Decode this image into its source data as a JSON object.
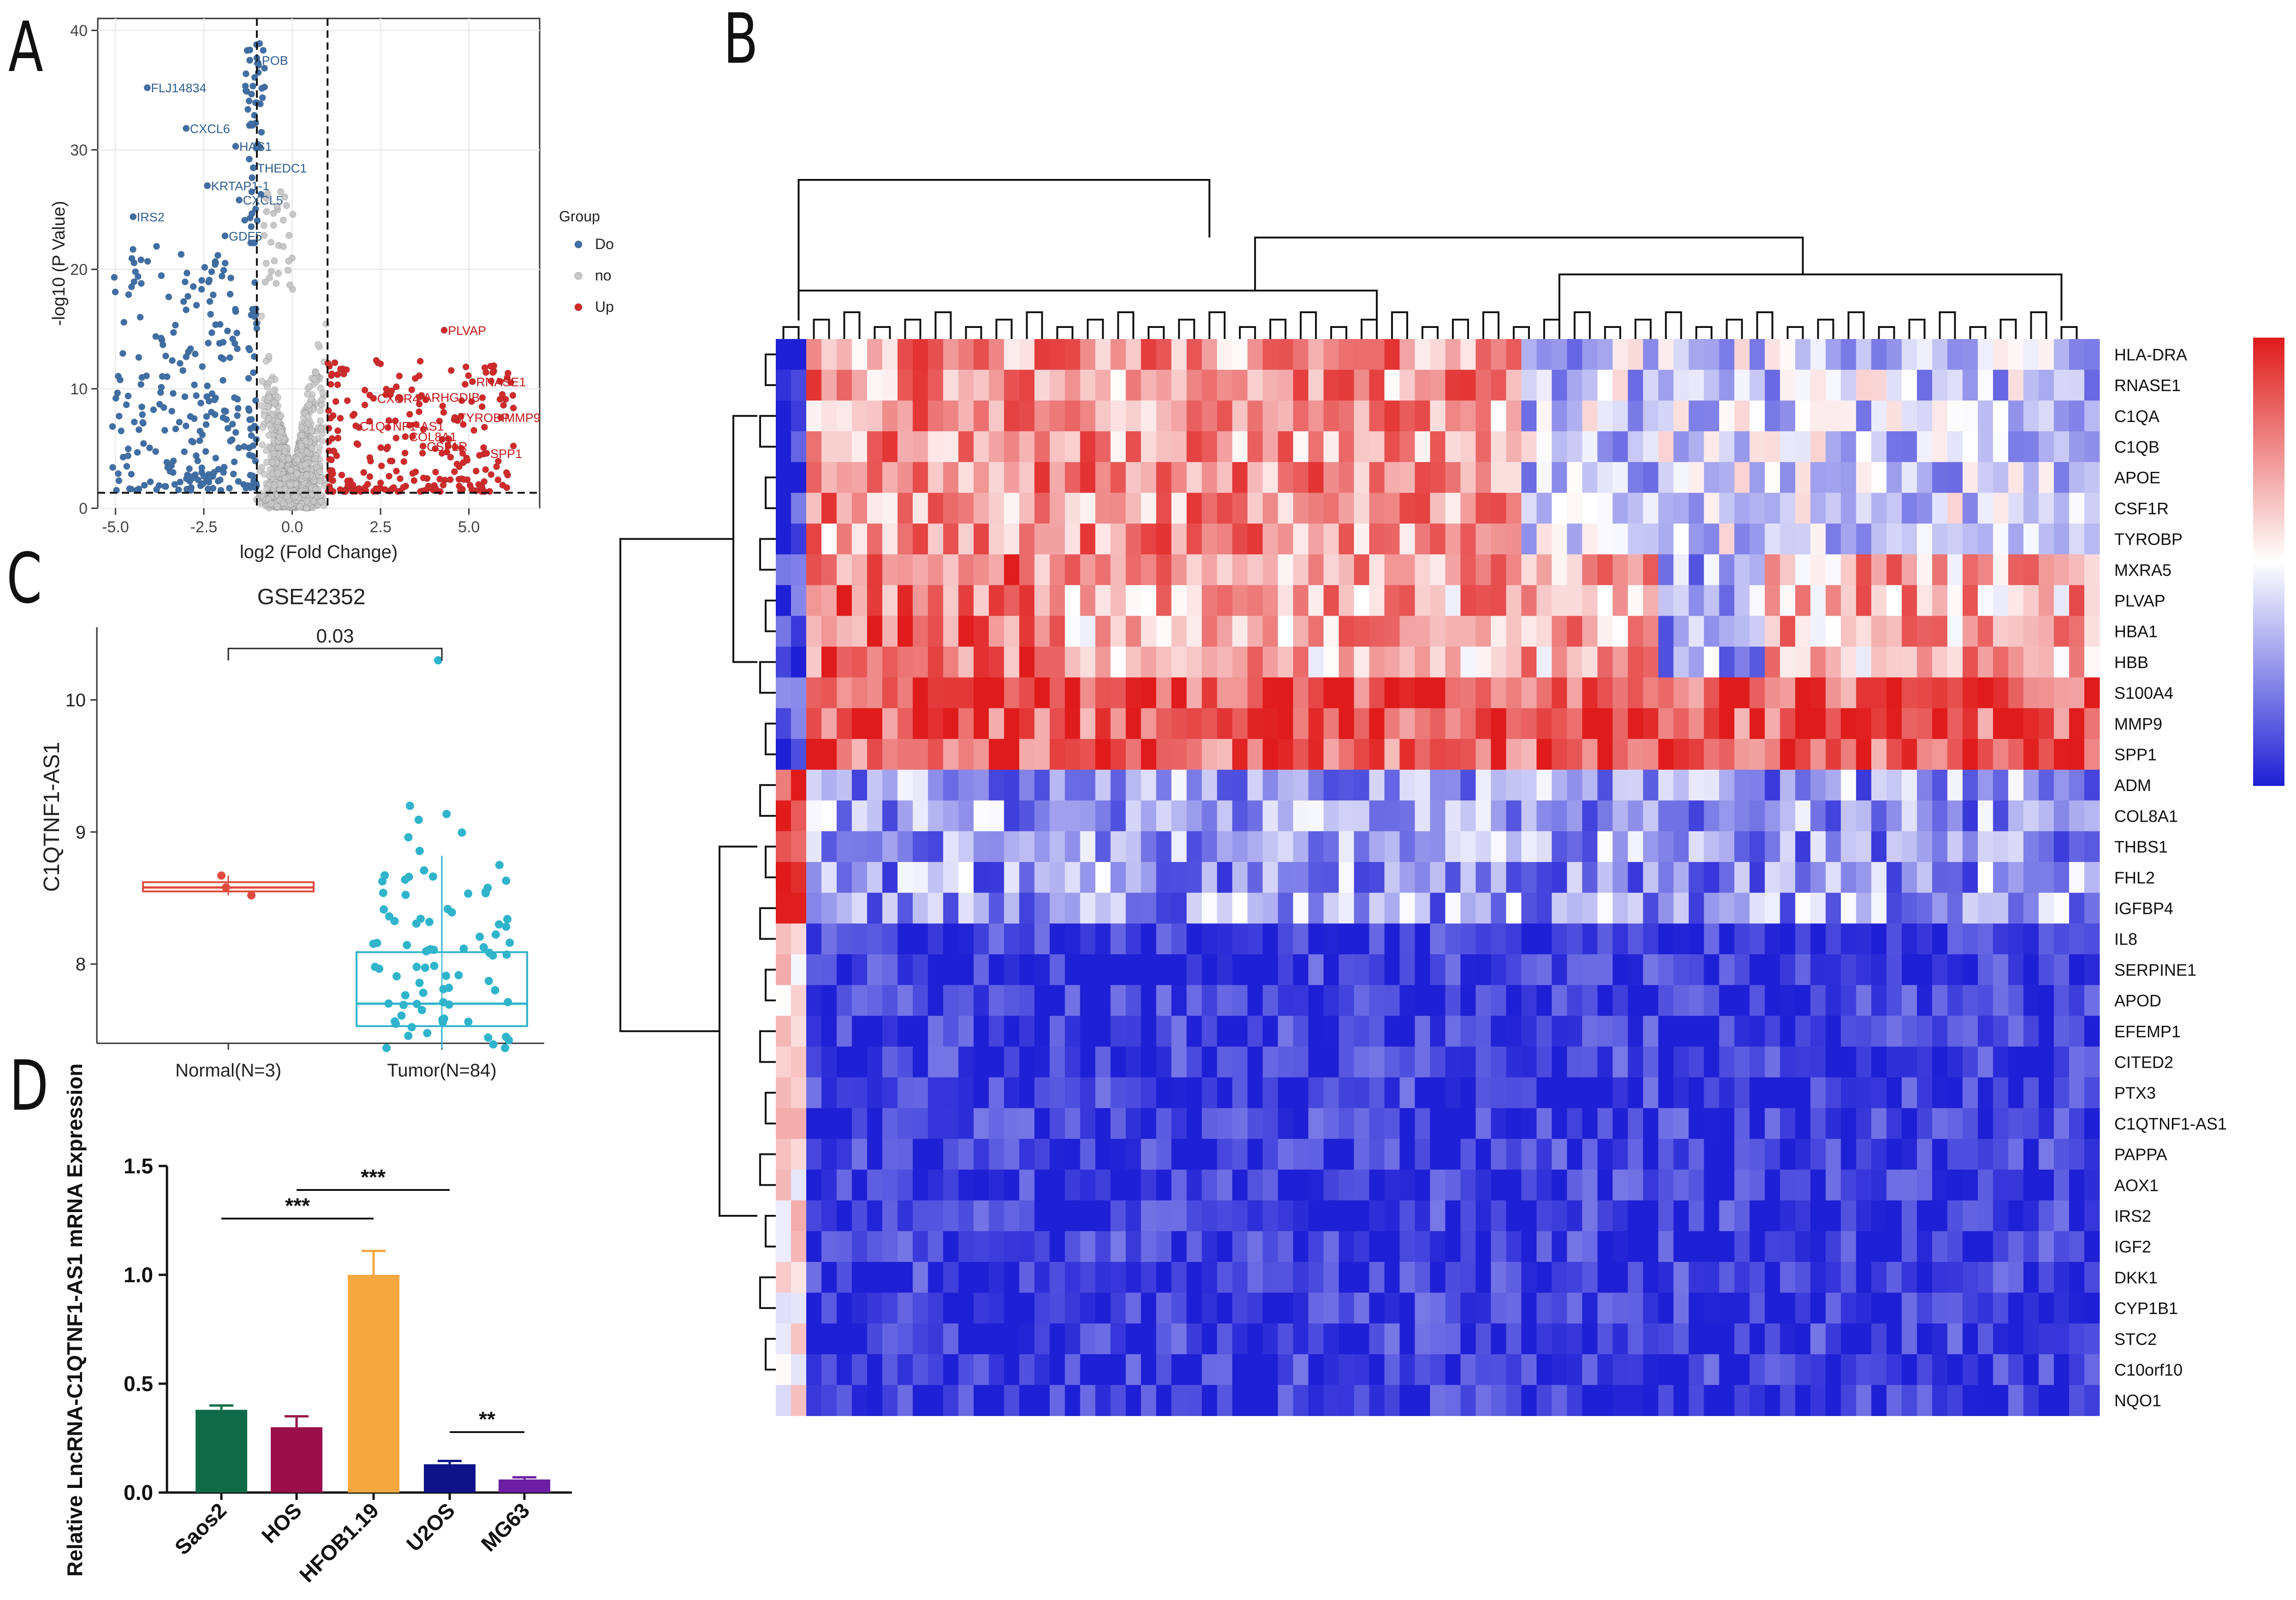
{
  "panels": {
    "A": "A",
    "B": "B",
    "C": "C",
    "D": "D"
  },
  "colors": {
    "down": "#3f6fa6",
    "nosig": "#c8c8c8",
    "up": "#d22a2a",
    "heat_low": "#1f1fd6",
    "heat_mid": "#ffffff",
    "heat_high": "#e01b1b",
    "box_normal": "#e14b3f",
    "box_tumor": "#2fb4cc",
    "bar_colors": [
      "#0f6b47",
      "#9a0f4a",
      "#f6a740",
      "#10128a",
      "#6b1ea1"
    ]
  },
  "chart_data": [
    {
      "id": "volcano",
      "type": "scatter",
      "xlabel": "log2 (Fold Change)",
      "ylabel": "-log10 (P Value)",
      "xlim": [
        -5.5,
        7
      ],
      "ylim": [
        0,
        41
      ],
      "xticks": [
        "-5.0",
        "-2.5",
        "0.0",
        "2.5",
        "5.0"
      ],
      "xtick_values": [
        -5,
        -2.5,
        0,
        2.5,
        5
      ],
      "yticks": [
        "0",
        "10",
        "20",
        "30",
        "40"
      ],
      "ytick_values": [
        0,
        10,
        20,
        30,
        40
      ],
      "vlines": [
        -1,
        1
      ],
      "hline": 1.3,
      "legend_title": "Group",
      "legend": [
        "Do",
        "no",
        "Up"
      ],
      "labels": [
        {
          "text": "APOB",
          "x": -1.2,
          "y": 37.5,
          "group": "down"
        },
        {
          "text": "FLJ14834",
          "x": -4.1,
          "y": 35.2,
          "group": "down"
        },
        {
          "text": "CXCL6",
          "x": -3.0,
          "y": 31.8,
          "group": "down"
        },
        {
          "text": "HAS1",
          "x": -1.6,
          "y": 30.3,
          "group": "down"
        },
        {
          "text": "THEDC1",
          "x": -1.1,
          "y": 28.5,
          "group": "down"
        },
        {
          "text": "KRTAP1-1",
          "x": -2.4,
          "y": 27.0,
          "group": "down"
        },
        {
          "text": "CXCL5",
          "x": -1.5,
          "y": 25.8,
          "group": "down"
        },
        {
          "text": "IRS2",
          "x": -4.5,
          "y": 24.4,
          "group": "down"
        },
        {
          "text": "GDF5",
          "x": -1.9,
          "y": 22.8,
          "group": "down"
        },
        {
          "text": "PLVAP",
          "x": 4.3,
          "y": 14.9,
          "group": "up"
        },
        {
          "text": "RNASE1",
          "x": 5.1,
          "y": 10.6,
          "group": "up"
        },
        {
          "text": "CXCR4",
          "x": 2.3,
          "y": 9.2,
          "group": "up"
        },
        {
          "text": "ARHGDIB",
          "x": 3.6,
          "y": 9.3,
          "group": "up"
        },
        {
          "text": "C1QTNF1-AS1",
          "x": 1.8,
          "y": 6.9,
          "group": "up"
        },
        {
          "text": "TYROBP",
          "x": 4.6,
          "y": 7.6,
          "group": "up"
        },
        {
          "text": "MMP9",
          "x": 5.9,
          "y": 7.6,
          "group": "up"
        },
        {
          "text": "COL8A1",
          "x": 3.2,
          "y": 6.0,
          "group": "up"
        },
        {
          "text": "CSF1R",
          "x": 3.7,
          "y": 5.2,
          "group": "up"
        },
        {
          "text": "SPP1",
          "x": 5.5,
          "y": 4.6,
          "group": "up"
        }
      ]
    },
    {
      "id": "heatmap",
      "type": "heatmap",
      "rows": [
        "HLA-DRA",
        "RNASE1",
        "C1QA",
        "C1QB",
        "APOE",
        "CSF1R",
        "TYROBP",
        "MXRA5",
        "PLVAP",
        "HBA1",
        "HBB",
        "S100A4",
        "MMP9",
        "SPP1",
        "ADM",
        "COL8A1",
        "THBS1",
        "FHL2",
        "IGFBP4",
        "IL8",
        "SERPINE1",
        "APOD",
        "EFEMP1",
        "CITED2",
        "PTX3",
        "C1QTNF1-AS1",
        "PAPPA",
        "AOX1",
        "IRS2",
        "IGF2",
        "DKK1",
        "CYP1B1",
        "STC2",
        "C10orf10",
        "NQO1"
      ],
      "n_cols": 87,
      "value_range": [
        -1,
        1
      ]
    },
    {
      "id": "boxplot",
      "type": "box",
      "title": "GSE42352",
      "ylabel": "C1QTNF1-AS1",
      "categories": [
        "Normal(N=3)",
        "Tumor(N=84)"
      ],
      "ylim": [
        7.4,
        10.55
      ],
      "yticks": [
        "8",
        "9",
        "10"
      ],
      "ytick_values": [
        8,
        9,
        10
      ],
      "pvalue": "0.03",
      "normal": {
        "q1": 8.55,
        "median": 8.58,
        "q3": 8.62,
        "min": 8.52,
        "max": 8.67,
        "points": [
          8.67,
          8.58,
          8.52
        ]
      },
      "tumor": {
        "q1": 7.53,
        "median": 7.7,
        "q3": 8.09,
        "min": 7.36,
        "max": 8.82,
        "outlier": 10.3
      }
    },
    {
      "id": "bar",
      "type": "bar",
      "ylabel": "Relative LncRNA-C1QTNF1-AS1 mRNA Expression",
      "categories": [
        "Saos2",
        "HOS",
        "HFOB1.19",
        "U2OS",
        "MG63"
      ],
      "values": [
        0.38,
        0.3,
        1.0,
        0.13,
        0.06
      ],
      "errors": [
        0.02,
        0.05,
        0.11,
        0.015,
        0.01
      ],
      "ylim": [
        0,
        1.5
      ],
      "yticks": [
        "0.0",
        "0.5",
        "1.0",
        "1.5"
      ],
      "ytick_values": [
        0,
        0.5,
        1.0,
        1.5
      ],
      "significance": [
        {
          "from": 0,
          "to": 2,
          "text": "***"
        },
        {
          "from": 1,
          "to": 3,
          "text": "***"
        },
        {
          "from": 3,
          "to": 4,
          "text": "**"
        }
      ]
    }
  ]
}
